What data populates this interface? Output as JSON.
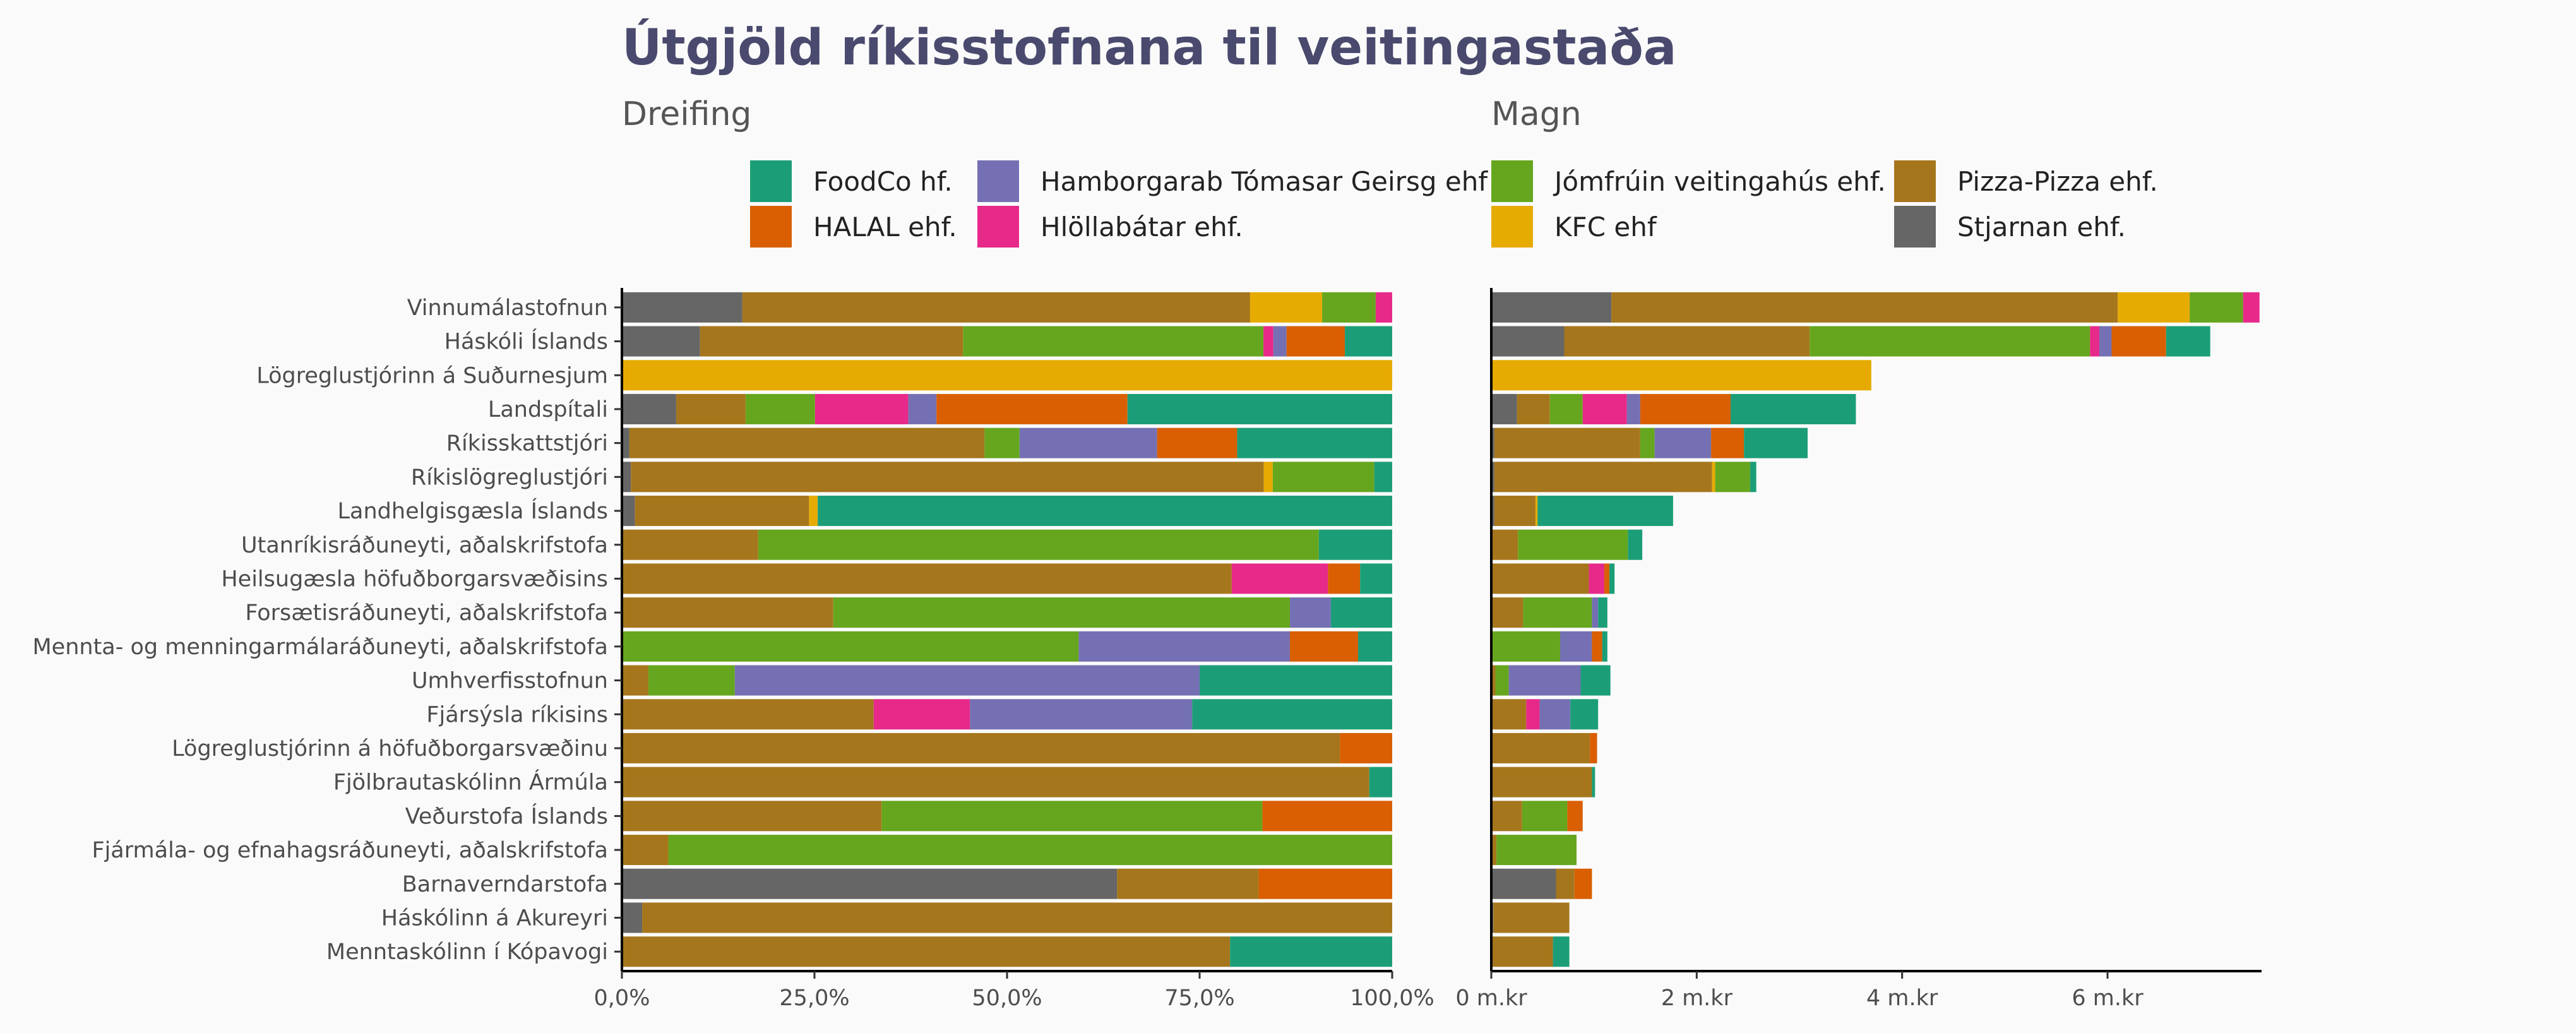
{
  "title": "Útgjöld ríkisstofnana til veitingastaða",
  "chart_data": {
    "type": "bar",
    "layout": "horizontal-stacked",
    "legend_position": "top",
    "grid": false,
    "categories": [
      "Vinnumálastofnun",
      "Háskóli Íslands",
      "Lögreglustjórinn á Suðurnesjum",
      "Landspítali",
      "Ríkisskattstjóri",
      "Ríkislögreglustjóri",
      "Landhelgisgæsla Íslands",
      "Utanríkisráðuneyti, aðalskrifstofa",
      "Heilsugæsla höfuðborgarsvæðisins",
      "Forsætisráðuneyti, aðalskrifstofa",
      "Mennta- og menningarmálaráðuneyti, aðalskrifstofa",
      "Umhverfisstofnun",
      "Fjársýsla ríkisins",
      "Lögreglustjórinn á höfuðborgarsvæðinu",
      "Fjölbrautaskólinn Ármúla",
      "Veðurstofa Íslands",
      "Fjármála- og efnahagsráðuneyti, aðalskrifstofa",
      "Barnaverndarstofa",
      "Háskólinn á Akureyri",
      "Menntaskólinn í Kópavogi"
    ],
    "series": [
      {
        "name": "Stjarnan ehf.",
        "color": "#666666",
        "values": [
          1.17,
          0.71,
          0,
          0.25,
          0.03,
          0.03,
          0.03,
          0,
          0,
          0,
          0,
          0,
          0,
          0,
          0,
          0,
          0,
          0.63,
          0.02,
          0
        ]
      },
      {
        "name": "Pizza-Pizza ehf.",
        "color": "#a6761d",
        "values": [
          4.93,
          2.39,
          0,
          0.32,
          1.42,
          2.12,
          0.4,
          0.26,
          0.95,
          0.31,
          0,
          0.04,
          0.34,
          0.96,
          0.98,
          0.3,
          0.05,
          0.18,
          0.74,
          0.6
        ]
      },
      {
        "name": "KFC ehf",
        "color": "#e6ab02",
        "values": [
          0.7,
          0,
          3.7,
          0,
          0,
          0.03,
          0.02,
          0,
          0,
          0,
          0,
          0,
          0,
          0,
          0,
          0,
          0,
          0,
          0,
          0
        ]
      },
      {
        "name": "Jómfrúin veitingahús ehf.",
        "color": "#66a61e",
        "values": [
          0.52,
          2.73,
          0,
          0.32,
          0.14,
          0.34,
          0,
          1.07,
          0,
          0.67,
          0.67,
          0.13,
          0,
          0,
          0,
          0.44,
          0.78,
          0,
          0,
          0
        ]
      },
      {
        "name": "Hlöllabátar ehf.",
        "color": "#e7298a",
        "values": [
          0.16,
          0.09,
          0,
          0.43,
          0,
          0,
          0,
          0,
          0.15,
          0,
          0,
          0,
          0.13,
          0,
          0,
          0,
          0,
          0,
          0,
          0
        ]
      },
      {
        "name": "Hamborgarab Tómasar Geirsg ehf",
        "color": "#7570b3",
        "values": [
          0,
          0.12,
          0,
          0.13,
          0.55,
          0,
          0,
          0,
          0,
          0.06,
          0.31,
          0.7,
          0.3,
          0,
          0,
          0,
          0,
          0,
          0,
          0
        ]
      },
      {
        "name": "HALAL ehf.",
        "color": "#d95f02",
        "values": [
          0,
          0.53,
          0,
          0.88,
          0.32,
          0,
          0,
          0,
          0.05,
          0,
          0.1,
          0,
          0,
          0.07,
          0,
          0.15,
          0,
          0.17,
          0,
          0
        ]
      },
      {
        "name": "FoodCo hf.",
        "color": "#1b9e77",
        "values": [
          0,
          0.43,
          0,
          1.22,
          0.62,
          0.06,
          1.32,
          0.14,
          0.05,
          0.09,
          0.05,
          0.29,
          0.27,
          0,
          0.03,
          0,
          0,
          0,
          0,
          0.16
        ]
      }
    ],
    "legend_order": [
      "FoodCo hf.",
      "HALAL ehf.",
      "Hamborgarab Tómasar Geirsg ehf",
      "Hlöllabátar ehf.",
      "Jómfrúin veitingahús ehf.",
      "KFC ehf",
      "Pizza-Pizza ehf.",
      "Stjarnan ehf."
    ],
    "panels": [
      {
        "subtitle": "Dreifing",
        "mode": "percent",
        "xlim": [
          0,
          1
        ],
        "ticks": [
          0,
          0.25,
          0.5,
          0.75,
          1
        ],
        "tick_labels": [
          "0,0%",
          "25,0%",
          "50,0%",
          "75,0%",
          "100,0%"
        ]
      },
      {
        "subtitle": "Magn",
        "mode": "absolute",
        "unit": "m.kr",
        "xlim": [
          0,
          7.5
        ],
        "ticks": [
          0,
          2,
          4,
          6
        ],
        "tick_labels": [
          "0 m.kr",
          "2 m.kr",
          "4 m.kr",
          "6 m.kr"
        ]
      }
    ]
  }
}
